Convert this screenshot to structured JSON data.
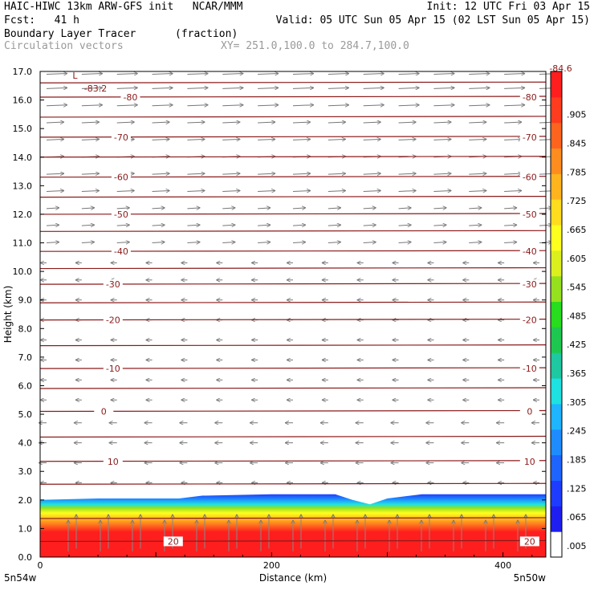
{
  "header": {
    "line1_left": "HAIC-HIWC 13km ARW-GFS init   NCAR/MMM",
    "line1_right": "Init: 12 UTC Fri 03 Apr 15",
    "line2_left": "Fcst:   41 h",
    "line2_right": "Valid: 05 UTC Sun 05 Apr 15 (02 LST Sun 05 Apr 15)",
    "field_name": "Boundary Layer Tracer",
    "field_units": "(fraction)",
    "vector_label": "Circulation vectors",
    "xy_label": "XY= 251.0,100.0 to 284.7,100.0"
  },
  "chart_data": {
    "type": "heatmap",
    "title": "Boundary Layer Tracer (fraction)",
    "xlabel": "Distance (km)",
    "ylabel": "Height (km)",
    "xlim": [
      0,
      437
    ],
    "ylim": [
      0,
      17
    ],
    "x_ticks": [
      "0",
      "200",
      "400"
    ],
    "y_ticks": [
      "0.0",
      "1.0",
      "2.0",
      "3.0",
      "4.0",
      "5.0",
      "6.0",
      "7.0",
      "8.0",
      "9.0",
      "10.0",
      "11.0",
      "12.0",
      "13.0",
      "14.0",
      "15.0",
      "16.0",
      "17.0"
    ],
    "x_end_labels": {
      "left": "5n54w",
      "right": "5n50w"
    },
    "boundary_layer_top_km": [
      [
        0,
        2.0
      ],
      [
        50,
        2.05
      ],
      [
        120,
        2.05
      ],
      [
        140,
        2.15
      ],
      [
        200,
        2.2
      ],
      [
        255,
        2.2
      ],
      [
        270,
        2.0
      ],
      [
        285,
        1.85
      ],
      [
        300,
        2.05
      ],
      [
        330,
        2.2
      ],
      [
        437,
        2.2
      ]
    ],
    "colorbar": {
      "ticks": [
        ".005",
        ".065",
        ".125",
        ".185",
        ".245",
        ".305",
        ".365",
        ".425",
        ".485",
        ".545",
        ".605",
        ".665",
        ".725",
        ".785",
        ".845",
        ".905"
      ],
      "colors": [
        "#ffffff",
        "#1e1ef0",
        "#1e3cff",
        "#1e64ff",
        "#1e8cff",
        "#1eb4ff",
        "#1ee1e1",
        "#1ec8a0",
        "#1ec850",
        "#28dc1e",
        "#96e11e",
        "#dcf01e",
        "#ffff1e",
        "#ffdc1e",
        "#ffb41e",
        "#ff8c1e",
        "#ff641e",
        "#ff3c1e",
        "#ff1e1e"
      ]
    },
    "temperature_contours": [
      {
        "label": "-80",
        "y": 16.1,
        "label_x": [
          78,
          423
        ]
      },
      {
        "label": "-70",
        "y": 14.7,
        "label_x": [
          70,
          423
        ]
      },
      {
        "label": "-60",
        "y": 13.3,
        "label_x": [
          70,
          423
        ]
      },
      {
        "label": "-50",
        "y": 12.0,
        "label_x": [
          70,
          423
        ]
      },
      {
        "label": "-40",
        "y": 10.7,
        "label_x": [
          70,
          423
        ]
      },
      {
        "label": "-30",
        "y": 9.55,
        "label_x": [
          63,
          423
        ]
      },
      {
        "label": "-20",
        "y": 8.3,
        "label_x": [
          63,
          423
        ]
      },
      {
        "label": "-10",
        "y": 6.6,
        "label_x": [
          63,
          423
        ]
      },
      {
        "label": "0",
        "y": 5.1,
        "label_x": [
          55,
          423
        ]
      },
      {
        "label": "10",
        "y": 3.35,
        "label_x": [
          63,
          423
        ]
      },
      {
        "label": "20",
        "y": 0.55,
        "label_x": [
          115,
          423
        ]
      }
    ],
    "extra_lines_km": [
      16.6,
      15.4,
      14.0,
      12.6,
      11.4,
      10.1,
      8.9,
      7.4,
      5.9,
      4.2,
      2.55,
      1.35
    ],
    "annotations": [
      {
        "text": "L",
        "x": 28,
        "y": 16.75
      },
      {
        "text": "-83.2",
        "x": 38,
        "y": 16.3
      },
      {
        "text": "-84.6",
        "x": 440,
        "y": 17.0
      }
    ],
    "vectors": {
      "label": "Circulation vectors",
      "levels_km": [
        16.9,
        16.4,
        15.8,
        15.2,
        14.6,
        14.0,
        13.4,
        12.8,
        12.2,
        11.6,
        11.0,
        10.3,
        9.7,
        9.0,
        8.3,
        7.6,
        6.9,
        6.2,
        5.5,
        4.7,
        4.0,
        3.3,
        2.6
      ],
      "columns": 15,
      "direction": "eastward aloft, westward / weak below ~11 km"
    }
  }
}
